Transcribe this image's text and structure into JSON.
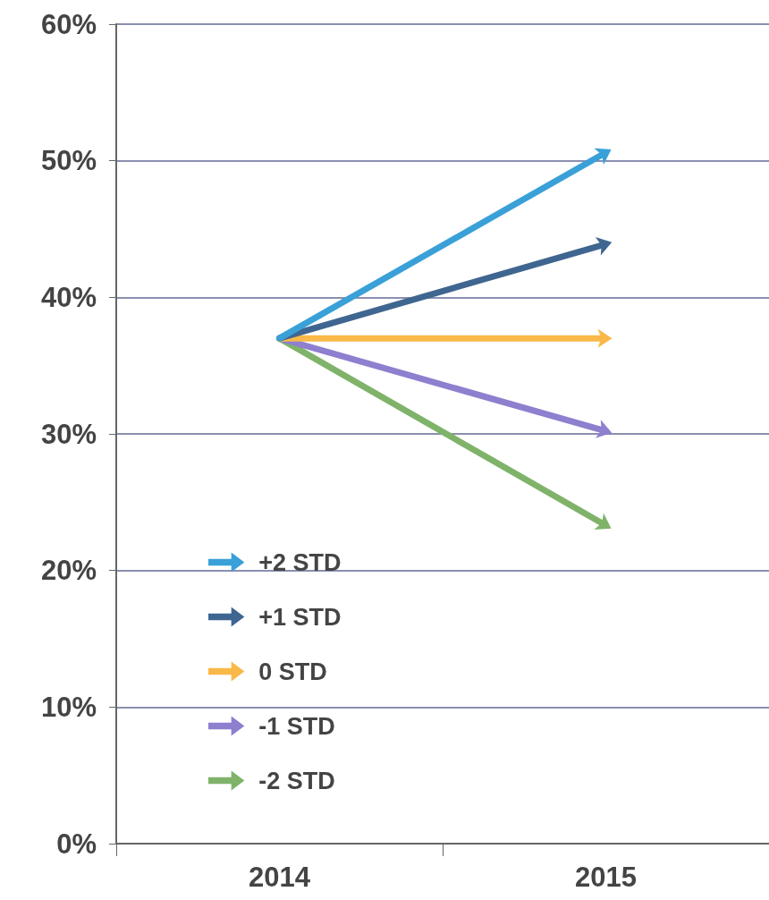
{
  "chart_data": {
    "type": "line",
    "categories": [
      "2014",
      "2015"
    ],
    "series": [
      {
        "name": "+2 STD",
        "color": "#3aa0d8",
        "values": [
          37,
          50.6
        ]
      },
      {
        "name": "+1 STD",
        "color": "#3f6690",
        "values": [
          37,
          43.9
        ]
      },
      {
        "name": "0 STD",
        "color": "#f9b848",
        "values": [
          37,
          37
        ]
      },
      {
        "name": "-1 STD",
        "color": "#8e7fcf",
        "values": [
          37,
          30.2
        ]
      },
      {
        "name": "-2 STD",
        "color": "#7fb36a",
        "values": [
          37,
          23.3
        ]
      }
    ],
    "ylim": [
      0,
      60
    ],
    "yticks": [
      {
        "value": 0,
        "label": "0%"
      },
      {
        "value": 10,
        "label": "10%"
      },
      {
        "value": 20,
        "label": "20%"
      },
      {
        "value": 30,
        "label": "30%"
      },
      {
        "value": 40,
        "label": "40%"
      },
      {
        "value": 50,
        "label": "50%"
      },
      {
        "value": 60,
        "label": "60%"
      }
    ],
    "grid": "y",
    "legend": "bottom left"
  }
}
